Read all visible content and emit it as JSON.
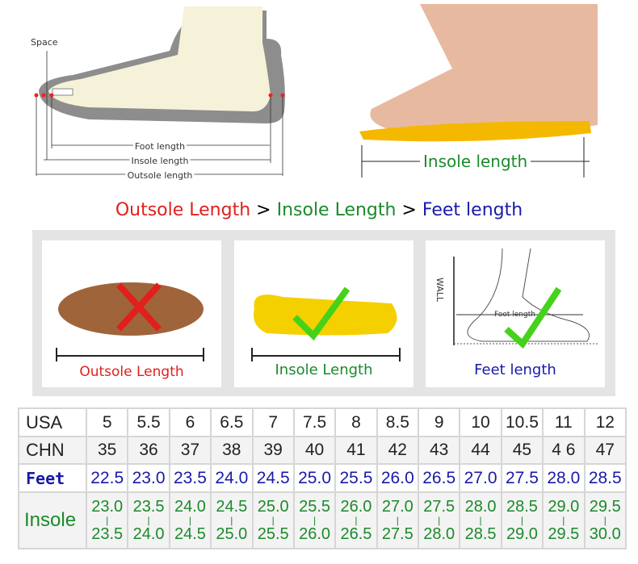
{
  "diagram": {
    "space": "Space",
    "foot_length": "Foot length",
    "insole_length": "Insole length",
    "outsole_length": "Outsole length"
  },
  "photo": {
    "label": "Insole length"
  },
  "headline": {
    "outsole": "Outsole Length",
    "sep1": " > ",
    "insole": "Insole Length",
    "sep2": " > ",
    "feet": "Feet length",
    "colors": {
      "outsole": "#e0201c",
      "insole": "#1b8a2b",
      "feet": "#1a1aa8"
    }
  },
  "panels": [
    {
      "label": "Outsole Length",
      "icon": "red-cross",
      "color": "#e0201c"
    },
    {
      "label": "Insole Length",
      "icon": "green-check",
      "color": "#1b8a2b"
    },
    {
      "label": "Feet length",
      "icon": "green-check",
      "color": "#1a1aa8",
      "wall": "WALL",
      "foot_length": "Foot length"
    }
  ],
  "size_table": {
    "usa_label": "USA",
    "usa": [
      "5",
      "5.5",
      "6",
      "6.5",
      "7",
      "7.5",
      "8",
      "8.5",
      "9",
      "10",
      "10.5",
      "11",
      "12"
    ],
    "chn_label": "CHN",
    "chn": [
      "35",
      "36",
      "37",
      "38",
      "39",
      "40",
      "41",
      "42",
      "43",
      "44",
      "45",
      "4 6",
      "47"
    ],
    "feet_label": "Feet",
    "feet": [
      "22.5",
      "23.0",
      "23.5",
      "24.0",
      "24.5",
      "25.0",
      "25.5",
      "26.0",
      "26.5",
      "27.0",
      "27.5",
      "28.0",
      "28.5"
    ],
    "insole_label": "Insole",
    "insole_min": [
      "23.0",
      "23.5",
      "24.0",
      "24.5",
      "25.0",
      "25.5",
      "26.0",
      "27.0",
      "27.5",
      "28.0",
      "28.5",
      "29.0",
      "29.5"
    ],
    "insole_max": [
      "23.5",
      "24.0",
      "24.5",
      "25.0",
      "25.5",
      "26.0",
      "26.5",
      "27.5",
      "28.0",
      "28.5",
      "29.0",
      "29.5",
      "30.0"
    ]
  }
}
